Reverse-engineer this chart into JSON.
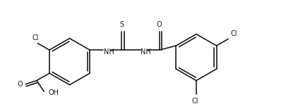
{
  "background": "#ffffff",
  "line_color": "#1a1a1a",
  "line_width": 1.2,
  "font_size": 7.0,
  "xlim": [
    0,
    10.2
  ],
  "ylim": [
    -0.5,
    4.0
  ],
  "figsize": [
    4.06,
    1.58
  ],
  "dpi": 100
}
